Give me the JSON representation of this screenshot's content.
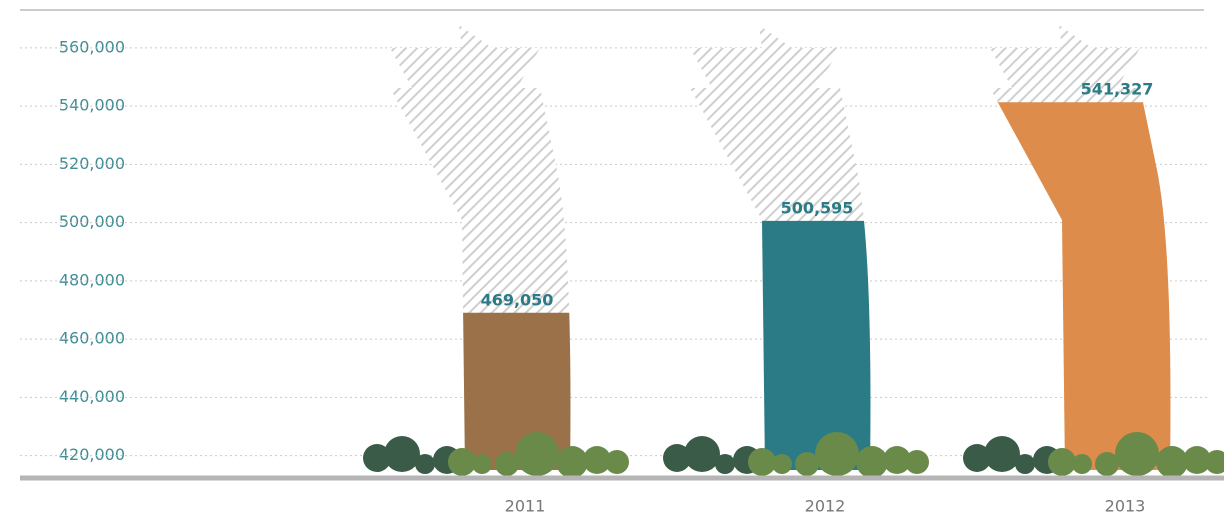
{
  "chart_data": {
    "type": "bar",
    "categories": [
      "2011",
      "2012",
      "2013"
    ],
    "values": [
      469050,
      500595,
      541327
    ],
    "value_labels": [
      "469,050",
      "500,595",
      "541,327"
    ],
    "colors": [
      "#9a7148",
      "#2a7b86",
      "#dd8c4b"
    ],
    "ylim": [
      413000,
      573000
    ],
    "yticks": [
      {
        "value": 420000,
        "label": "420,000"
      },
      {
        "value": 440000,
        "label": "440,000"
      },
      {
        "value": 460000,
        "label": "460,000"
      },
      {
        "value": 480000,
        "label": "480,000"
      },
      {
        "value": 500000,
        "label": "500,000"
      },
      {
        "value": 520000,
        "label": "520,000"
      },
      {
        "value": 540000,
        "label": "540,000"
      },
      {
        "value": 560000,
        "label": "560,000"
      }
    ],
    "grid": true
  }
}
